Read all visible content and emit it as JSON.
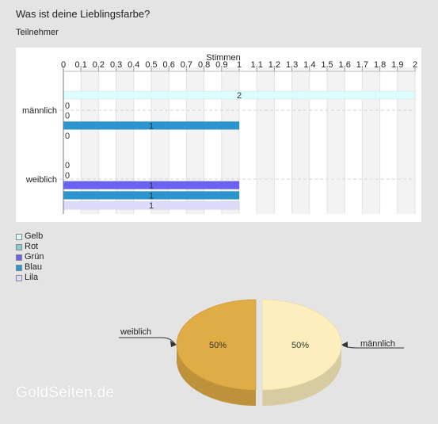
{
  "title": "Was ist deine Lieblingsfarbe?",
  "subtitle": "Teilnehmer",
  "watermark": "GoldSeiten.de",
  "chart_data": [
    {
      "type": "bar",
      "orientation": "horizontal",
      "xlabel": "Stimmen",
      "xlim": [
        0,
        2
      ],
      "ticks": [
        "0",
        "0.1",
        "0.2",
        "0.3",
        "0.4",
        "0.5",
        "0.6",
        "0.7",
        "0.8",
        "0.9",
        "1",
        "1.1",
        "1.2",
        "1.3",
        "1.4",
        "1.5",
        "1.6",
        "1.7",
        "1.8",
        "1.9",
        "2"
      ],
      "categories": [
        "männlich",
        "weiblich"
      ],
      "grid": true,
      "legend_position": "bottom-left",
      "series": [
        {
          "name": "Gelb",
          "color": "#ddfdfd",
          "values": [
            2,
            0
          ]
        },
        {
          "name": "Rot",
          "color": "#86cfc8",
          "values": [
            0,
            0
          ]
        },
        {
          "name": "Grün",
          "color": "#6b62f2",
          "values": [
            0,
            1
          ]
        },
        {
          "name": "Blau",
          "color": "#2a95cf",
          "values": [
            1,
            1
          ]
        },
        {
          "name": "Lila",
          "color": "#dcdcfa",
          "values": [
            0,
            1
          ]
        }
      ]
    },
    {
      "type": "pie",
      "slices": [
        {
          "label": "weiblich",
          "value": 50,
          "value_label": "50%",
          "color": "#e0ac45"
        },
        {
          "label": "männlich",
          "value": 50,
          "value_label": "50%",
          "color": "#fdefbd"
        }
      ]
    }
  ]
}
